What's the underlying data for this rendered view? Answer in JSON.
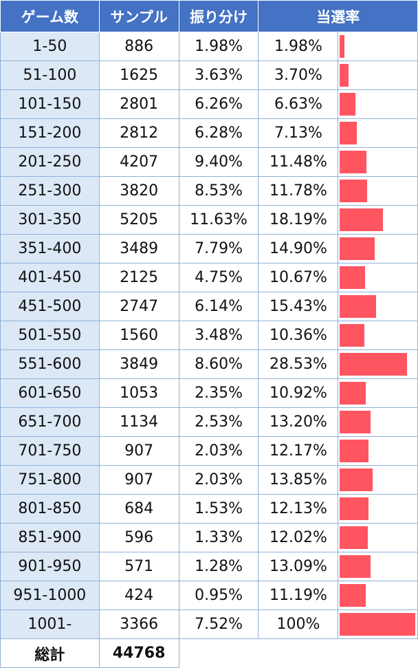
{
  "headers": {
    "games": "ゲーム数",
    "samples": "サンプル",
    "distribution": "振り分け",
    "rate": "当選率"
  },
  "chart_data": {
    "type": "table",
    "bar_color": "#ff5561",
    "header_color": "#4472c4",
    "range_color": "#dce8f6",
    "rows": [
      {
        "range": "1-50",
        "samples": "886",
        "share": "1.98%",
        "rate": "1.98%",
        "rate_value": 1.98
      },
      {
        "range": "51-100",
        "samples": "1625",
        "share": "3.63%",
        "rate": "3.70%",
        "rate_value": 3.7
      },
      {
        "range": "101-150",
        "samples": "2801",
        "share": "6.26%",
        "rate": "6.63%",
        "rate_value": 6.63
      },
      {
        "range": "151-200",
        "samples": "2812",
        "share": "6.28%",
        "rate": "7.13%",
        "rate_value": 7.13
      },
      {
        "range": "201-250",
        "samples": "4207",
        "share": "9.40%",
        "rate": "11.48%",
        "rate_value": 11.48
      },
      {
        "range": "251-300",
        "samples": "3820",
        "share": "8.53%",
        "rate": "11.78%",
        "rate_value": 11.78
      },
      {
        "range": "301-350",
        "samples": "5205",
        "share": "11.63%",
        "rate": "18.19%",
        "rate_value": 18.19
      },
      {
        "range": "351-400",
        "samples": "3489",
        "share": "7.79%",
        "rate": "14.90%",
        "rate_value": 14.9
      },
      {
        "range": "401-450",
        "samples": "2125",
        "share": "4.75%",
        "rate": "10.67%",
        "rate_value": 10.67
      },
      {
        "range": "451-500",
        "samples": "2747",
        "share": "6.14%",
        "rate": "15.43%",
        "rate_value": 15.43
      },
      {
        "range": "501-550",
        "samples": "1560",
        "share": "3.48%",
        "rate": "10.36%",
        "rate_value": 10.36
      },
      {
        "range": "551-600",
        "samples": "3849",
        "share": "8.60%",
        "rate": "28.53%",
        "rate_value": 28.53
      },
      {
        "range": "601-650",
        "samples": "1053",
        "share": "2.35%",
        "rate": "10.92%",
        "rate_value": 10.92
      },
      {
        "range": "651-700",
        "samples": "1134",
        "share": "2.53%",
        "rate": "13.20%",
        "rate_value": 13.2
      },
      {
        "range": "701-750",
        "samples": "907",
        "share": "2.03%",
        "rate": "12.17%",
        "rate_value": 12.17
      },
      {
        "range": "751-800",
        "samples": "907",
        "share": "2.03%",
        "rate": "13.85%",
        "rate_value": 13.85
      },
      {
        "range": "801-850",
        "samples": "684",
        "share": "1.53%",
        "rate": "12.13%",
        "rate_value": 12.13
      },
      {
        "range": "851-900",
        "samples": "596",
        "share": "1.33%",
        "rate": "12.02%",
        "rate_value": 12.02
      },
      {
        "range": "901-950",
        "samples": "571",
        "share": "1.28%",
        "rate": "13.09%",
        "rate_value": 13.09
      },
      {
        "range": "951-1000",
        "samples": "424",
        "share": "0.95%",
        "rate": "11.19%",
        "rate_value": 11.19
      },
      {
        "range": "1001-",
        "samples": "3366",
        "share": "7.52%",
        "rate": "100%",
        "rate_value": 100
      }
    ],
    "bar_scale_max": 32,
    "total": {
      "label": "総計",
      "samples": "44768"
    }
  }
}
